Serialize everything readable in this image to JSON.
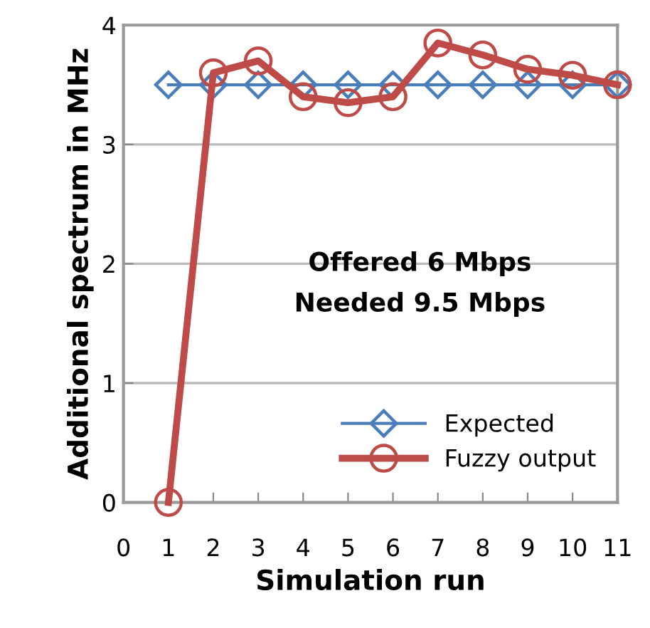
{
  "chart_data": {
    "type": "line",
    "xlabel": "Simulation run",
    "ylabel": "Additional spectrum in MHz",
    "x": [
      1,
      2,
      3,
      4,
      5,
      6,
      7,
      8,
      9,
      10,
      11
    ],
    "series": [
      {
        "name": "Expected",
        "color": "#4a7ebb",
        "marker": "diamond",
        "values": [
          3.5,
          3.5,
          3.5,
          3.5,
          3.5,
          3.5,
          3.5,
          3.5,
          3.5,
          3.5,
          3.5
        ]
      },
      {
        "name": "Fuzzy output",
        "color": "#be4b48",
        "marker": "circle",
        "values": [
          0,
          3.6,
          3.7,
          3.4,
          3.35,
          3.4,
          3.85,
          3.75,
          3.63,
          3.58,
          3.5
        ]
      }
    ],
    "annotations": [
      "Offered 6 Mbps",
      "Needed 9.5 Mbps"
    ],
    "xlim": [
      0,
      11
    ],
    "xticks": [
      0,
      1,
      2,
      3,
      4,
      5,
      6,
      7,
      8,
      9,
      10,
      11
    ],
    "ylim": [
      0,
      4
    ],
    "yticks": [
      0,
      1,
      2,
      3,
      4
    ],
    "grid": "y",
    "legend": "bottom right",
    "line_style": "solid"
  }
}
